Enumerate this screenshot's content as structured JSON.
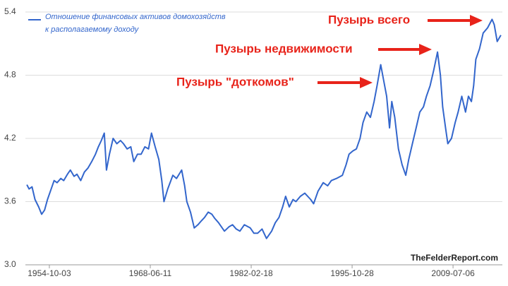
{
  "chart_data": {
    "type": "line",
    "series": [
      {
        "name": [
          "Отношение финансовых активов домохозяйств",
          "к располагаемому доходу"
        ],
        "color": "#3366cc",
        "x": [
          1951.7,
          1952.0,
          1952.4,
          1952.8,
          1953.3,
          1953.7,
          1954.1,
          1954.5,
          1954.9,
          1955.4,
          1955.8,
          1956.3,
          1956.7,
          1957.2,
          1957.6,
          1958.1,
          1958.5,
          1959.0,
          1959.5,
          1960.0,
          1960.5,
          1961.0,
          1961.4,
          1961.8,
          1962.2,
          1962.5,
          1962.9,
          1963.4,
          1963.9,
          1964.4,
          1964.8,
          1965.3,
          1965.8,
          1966.2,
          1966.7,
          1967.2,
          1967.7,
          1968.2,
          1968.6,
          1969.1,
          1969.6,
          1970.0,
          1970.3,
          1970.8,
          1971.5,
          1972.0,
          1972.7,
          1973.1,
          1973.4,
          1973.9,
          1974.4,
          1974.9,
          1975.4,
          1975.8,
          1976.3,
          1976.8,
          1977.2,
          1977.7,
          1978.1,
          1978.5,
          1979.1,
          1979.6,
          1980.1,
          1980.6,
          1981.2,
          1982.0,
          1982.5,
          1983.0,
          1983.6,
          1984.2,
          1984.9,
          1985.4,
          1985.9,
          1986.4,
          1986.8,
          1987.3,
          1987.8,
          1988.2,
          1988.8,
          1989.4,
          1990.2,
          1990.6,
          1991.2,
          1991.9,
          1992.5,
          1993.0,
          1993.7,
          1994.5,
          1995.0,
          1995.4,
          1995.9,
          1996.4,
          1996.9,
          1997.3,
          1997.8,
          1998.3,
          1998.8,
          1999.2,
          1999.7,
          2000.1,
          2000.5,
          2000.9,
          2001.2,
          2001.6,
          2002.1,
          2002.6,
          2003.1,
          2003.5,
          2004.0,
          2004.5,
          2005.0,
          2005.5,
          2005.9,
          2006.4,
          2006.9,
          2007.4,
          2007.8,
          2008.1,
          2008.5,
          2008.8,
          2009.3,
          2009.8,
          2010.2,
          2010.7,
          2011.2,
          2011.6,
          2012.0,
          2012.3,
          2012.6,
          2013.1,
          2013.6,
          2014.2,
          2014.8,
          2015.1,
          2015.5,
          2016.0
        ],
        "values": [
          3.76,
          3.72,
          3.74,
          3.62,
          3.55,
          3.48,
          3.52,
          3.62,
          3.7,
          3.8,
          3.78,
          3.82,
          3.8,
          3.86,
          3.9,
          3.84,
          3.86,
          3.8,
          3.88,
          3.92,
          3.98,
          4.05,
          4.12,
          4.18,
          4.25,
          3.9,
          4.05,
          4.2,
          4.15,
          4.18,
          4.15,
          4.1,
          4.12,
          3.98,
          4.05,
          4.05,
          4.12,
          4.1,
          4.25,
          4.12,
          4.0,
          3.8,
          3.6,
          3.72,
          3.85,
          3.82,
          3.9,
          3.75,
          3.6,
          3.5,
          3.35,
          3.38,
          3.42,
          3.45,
          3.5,
          3.48,
          3.44,
          3.4,
          3.36,
          3.32,
          3.36,
          3.38,
          3.34,
          3.32,
          3.38,
          3.35,
          3.3,
          3.3,
          3.34,
          3.25,
          3.32,
          3.4,
          3.45,
          3.55,
          3.65,
          3.55,
          3.62,
          3.6,
          3.65,
          3.68,
          3.62,
          3.58,
          3.7,
          3.78,
          3.75,
          3.8,
          3.82,
          3.85,
          3.95,
          4.05,
          4.08,
          4.1,
          4.2,
          4.35,
          4.45,
          4.4,
          4.55,
          4.7,
          4.9,
          4.75,
          4.6,
          4.3,
          4.55,
          4.4,
          4.1,
          3.95,
          3.85,
          4.0,
          4.15,
          4.3,
          4.45,
          4.5,
          4.6,
          4.7,
          4.85,
          5.02,
          4.8,
          4.5,
          4.3,
          4.15,
          4.2,
          4.35,
          4.45,
          4.6,
          4.45,
          4.6,
          4.55,
          4.7,
          4.95,
          5.05,
          5.2,
          5.25,
          5.33,
          5.28,
          5.12,
          5.18
        ]
      }
    ],
    "xlim": [
      1951.5,
      2016.2
    ],
    "xticks": [
      {
        "value": 1954.75,
        "label": "1954-10-03"
      },
      {
        "value": 1968.44,
        "label": "1968-06-11"
      },
      {
        "value": 1982.13,
        "label": "1982-02-18"
      },
      {
        "value": 1995.82,
        "label": "1995-10-28"
      },
      {
        "value": 2009.51,
        "label": "2009-07-06"
      }
    ],
    "ylim": [
      3,
      5.4
    ],
    "yticks": [
      {
        "value": 3,
        "label": "3.0"
      },
      3.6,
      4.2,
      4.8,
      5.4
    ],
    "grid": true,
    "annotations": [
      "Пузырь всего",
      "Пузырь недвижимости",
      "Пузырь \"доткомов\""
    ],
    "source": "TheFelderReport.com"
  }
}
